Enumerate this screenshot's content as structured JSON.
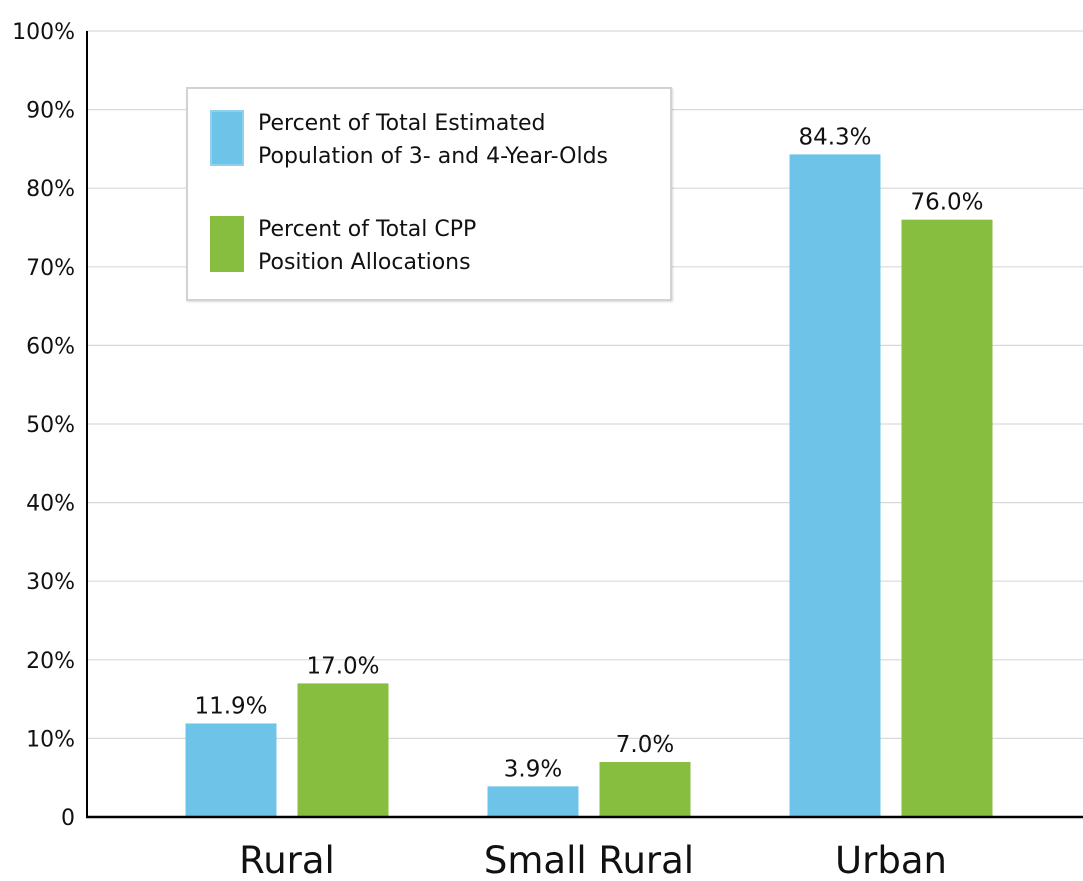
{
  "colors": {
    "series_population": "#6ec4e8",
    "series_population_swatch_border": "#8fd0ee",
    "series_cpp": "#88be3f",
    "axis": "#000000",
    "grid": "#d9d9d9"
  },
  "legend": {
    "placement": "top-left",
    "items": [
      {
        "line1": "Percent of Total Estimated",
        "line2": "Population of 3- and 4-Year-Olds"
      },
      {
        "line1": "Percent of Total CPP",
        "line2": "Position Allocations"
      }
    ]
  },
  "chart_data": {
    "type": "bar",
    "categories": [
      "Rural",
      "Small Rural",
      "Urban"
    ],
    "series": [
      {
        "values": [
          11.9,
          3.9,
          84.3
        ],
        "labels": [
          "11.9%",
          "3.9%",
          "84.3%"
        ]
      },
      {
        "values": [
          17.0,
          7.0,
          76.0
        ],
        "labels": [
          "17.0%",
          "7.0%",
          "76.0%"
        ]
      }
    ],
    "ylim": [
      0,
      100
    ],
    "yticks": [
      0,
      10,
      20,
      30,
      40,
      50,
      60,
      70,
      80,
      90,
      100
    ],
    "ytick_labels": [
      "0",
      "10%",
      "20%",
      "30%",
      "40%",
      "50%",
      "60%",
      "70%",
      "80%",
      "90%",
      "100%"
    ],
    "grid": true,
    "title": "",
    "xlabel": "",
    "ylabel": ""
  }
}
